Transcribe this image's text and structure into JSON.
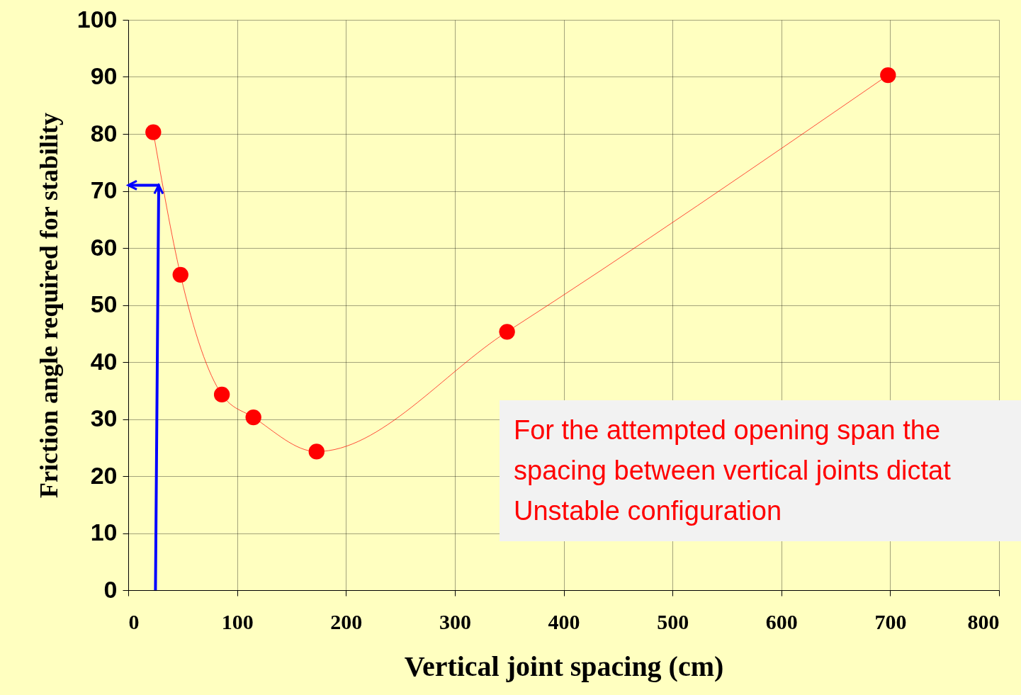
{
  "chart_data": {
    "type": "line",
    "xlabel": "Vertical joint spacing (cm)",
    "ylabel": "Friction angle required for stability",
    "x": [
      23,
      48,
      86,
      115,
      173,
      348,
      698
    ],
    "series": [
      {
        "color": "#ff0000",
        "values": [
          80.3,
          55.3,
          34.3,
          30.3,
          24.3,
          45.3,
          90.3
        ]
      },
      {
        "type": "line",
        "color": "#0000ff",
        "marker": "none",
        "x": [
          25,
          28,
          0
        ],
        "values": [
          0,
          71,
          71
        ]
      }
    ],
    "xlim": [
      0,
      800
    ],
    "xticks": [
      0,
      100,
      200,
      300,
      400,
      500,
      600,
      700,
      800
    ],
    "ylim": [
      0,
      100
    ],
    "yticks": [
      0,
      10,
      20,
      30,
      40,
      50,
      60,
      70,
      80,
      90,
      100
    ],
    "grid": true,
    "marker": "circle",
    "line_style": "solid",
    "annotations": [
      "For the attempted opening span the spacing between vertical joints dictat Unstable configuration"
    ]
  }
}
